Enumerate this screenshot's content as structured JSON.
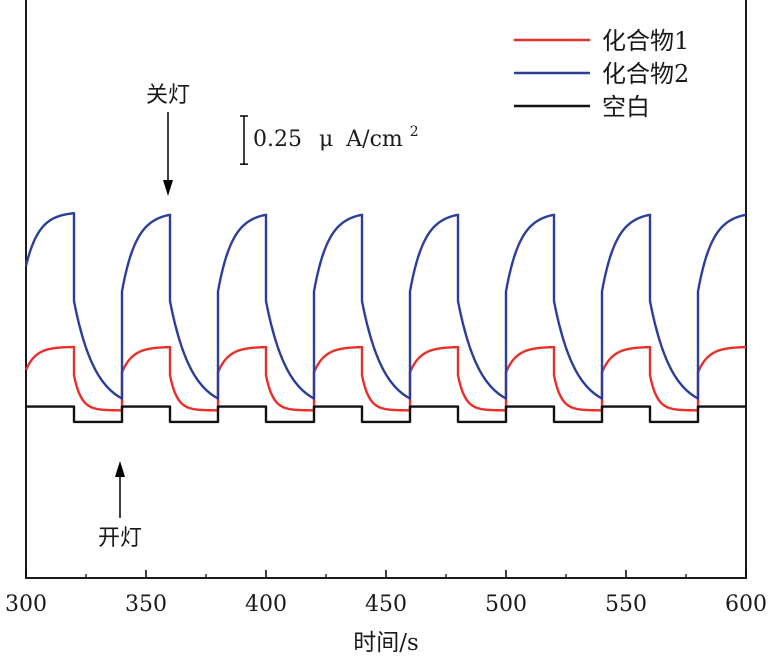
{
  "chart_data": {
    "type": "line",
    "xlabel": "时间/s",
    "ylabel": "",
    "xlim": [
      300,
      600
    ],
    "xticks": [
      300,
      350,
      400,
      450,
      500,
      550,
      600
    ],
    "ylim": [
      -0.9,
      2.1
    ],
    "y_unit": "μA/cm² (relative)",
    "grid": false,
    "legend_position": "top-right",
    "light_cycle": {
      "off_times": [
        320,
        360,
        400,
        440,
        480,
        520,
        560
      ],
      "on_times": [
        340,
        380,
        420,
        460,
        500,
        540,
        580
      ],
      "period_s": 40
    },
    "series": [
      {
        "name": "化合物1",
        "color": "#e8302a",
        "on_level": 0.3,
        "off_level": -0.03,
        "start_level": 0.18
      },
      {
        "name": "化合物2",
        "color": "#2b3f9a",
        "on_level": 1.0,
        "off_level": -0.03,
        "start_level": 0.72
      },
      {
        "name": "空白",
        "color": "#111111",
        "on_level": -0.01,
        "off_level": -0.09,
        "start_level": -0.01
      }
    ],
    "annotations": {
      "light_off": {
        "label": "关灯",
        "x": 360
      },
      "light_on": {
        "label": "开灯",
        "x": 340
      },
      "scale_bar": {
        "label": "0.25",
        "unit_mu": "μ",
        "unit_rest": "A/cm",
        "superscript": "2",
        "value": 0.25
      }
    }
  }
}
